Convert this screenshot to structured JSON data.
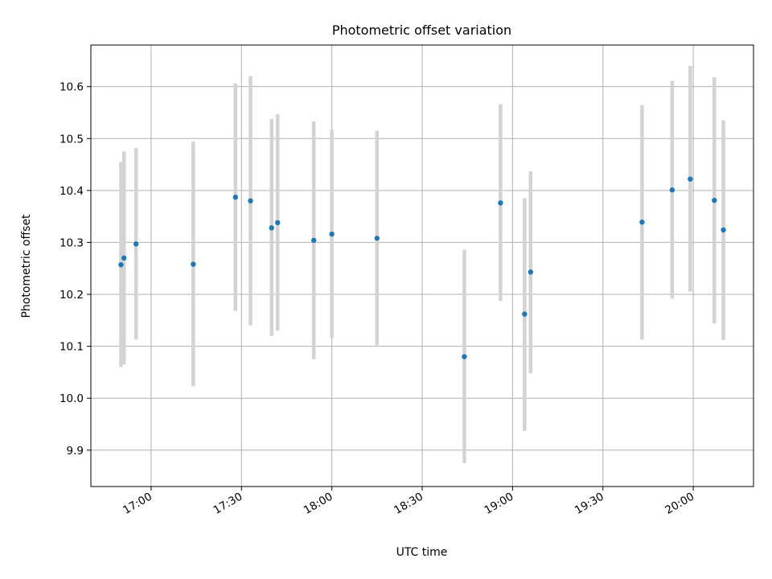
{
  "chart_data": {
    "type": "scatter",
    "title": "Photometric offset variation",
    "xlabel": "UTC time",
    "ylabel": "Photometric offset",
    "grid": true,
    "xlim": [
      "16:40",
      "20:20"
    ],
    "ylim": [
      9.83,
      10.68
    ],
    "x_ticks": [
      "17:00",
      "17:30",
      "18:00",
      "18:30",
      "19:00",
      "19:30",
      "20:00"
    ],
    "y_ticks": [
      "9.9",
      "10.0",
      "10.1",
      "10.2",
      "10.3",
      "10.4",
      "10.5",
      "10.6"
    ],
    "colors": {
      "point": "#1f77b4",
      "errorbar": "#d3d3d3",
      "grid": "#b0b0b0"
    },
    "points": [
      {
        "x": "16:50",
        "y": 10.257,
        "low": 10.06,
        "high": 10.455
      },
      {
        "x": "16:51",
        "y": 10.27,
        "low": 10.065,
        "high": 10.475
      },
      {
        "x": "16:55",
        "y": 10.297,
        "low": 10.113,
        "high": 10.482
      },
      {
        "x": "17:14",
        "y": 10.258,
        "low": 10.023,
        "high": 10.494
      },
      {
        "x": "17:28",
        "y": 10.387,
        "low": 10.168,
        "high": 10.606
      },
      {
        "x": "17:33",
        "y": 10.38,
        "low": 10.14,
        "high": 10.62
      },
      {
        "x": "17:40",
        "y": 10.328,
        "low": 10.12,
        "high": 10.538
      },
      {
        "x": "17:42",
        "y": 10.338,
        "low": 10.13,
        "high": 10.547
      },
      {
        "x": "17:54",
        "y": 10.304,
        "low": 10.075,
        "high": 10.533
      },
      {
        "x": "18:00",
        "y": 10.316,
        "low": 10.115,
        "high": 10.517
      },
      {
        "x": "18:15",
        "y": 10.308,
        "low": 10.102,
        "high": 10.515
      },
      {
        "x": "18:44",
        "y": 10.08,
        "low": 9.875,
        "high": 10.286
      },
      {
        "x": "18:56",
        "y": 10.376,
        "low": 10.187,
        "high": 10.566
      },
      {
        "x": "19:04",
        "y": 10.162,
        "low": 9.937,
        "high": 10.385
      },
      {
        "x": "19:06",
        "y": 10.243,
        "low": 10.048,
        "high": 10.437
      },
      {
        "x": "19:43",
        "y": 10.339,
        "low": 10.113,
        "high": 10.564
      },
      {
        "x": "19:53",
        "y": 10.401,
        "low": 10.192,
        "high": 10.611
      },
      {
        "x": "19:59",
        "y": 10.422,
        "low": 10.205,
        "high": 10.64
      },
      {
        "x": "20:07",
        "y": 10.381,
        "low": 10.144,
        "high": 10.618
      },
      {
        "x": "20:10",
        "y": 10.324,
        "low": 10.112,
        "high": 10.535
      }
    ]
  }
}
